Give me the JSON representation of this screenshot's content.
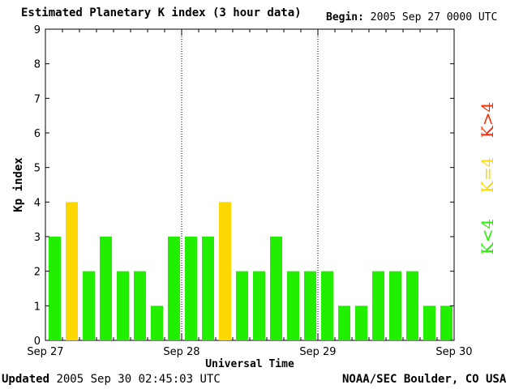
{
  "header": {
    "title": "Estimated Planetary K index (3 hour data)",
    "begin_label": "Begin:",
    "begin_value": "2005 Sep 27 0000 UTC"
  },
  "footer": {
    "updated_label": "Updated",
    "updated_value": "2005 Sep 30 02:45:03 UTC",
    "source": "NOAA/SEC Boulder, CO USA"
  },
  "legend": [
    {
      "label": "K>4",
      "color": "#ff2a00"
    },
    {
      "label": "K=4",
      "color": "#ffd700"
    },
    {
      "label": "K<4",
      "color": "#22ee00"
    }
  ],
  "colors": {
    "below": "#22ee00",
    "equal": "#ffd700",
    "above": "#ff2a00"
  },
  "chart_data": {
    "type": "bar",
    "title": "Estimated Planetary K index (3 hour data)",
    "xlabel": "Universal Time",
    "ylabel": "Kp index",
    "ylim": [
      0,
      9
    ],
    "yticks": [
      "0",
      "1",
      "2",
      "3",
      "4",
      "5",
      "6",
      "7",
      "8",
      "9"
    ],
    "xtick_labels": [
      "Sep 27",
      "Sep 28",
      "Sep 29",
      "Sep 30"
    ],
    "grid": "dotted vertical lines at day boundaries",
    "values": [
      3,
      4,
      2,
      3,
      2,
      2,
      1,
      3,
      3,
      3,
      4,
      2,
      2,
      3,
      2,
      2,
      2,
      1,
      1,
      2,
      2,
      2,
      1,
      1
    ]
  }
}
